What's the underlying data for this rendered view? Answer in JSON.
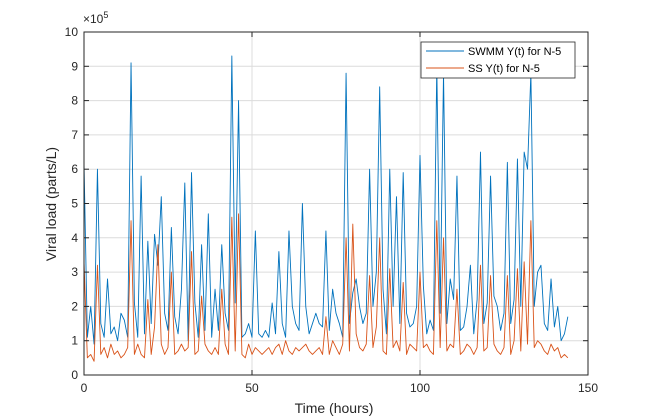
{
  "chart_data": {
    "type": "line",
    "title": "",
    "xlabel": "Time (hours)",
    "ylabel": "Viral load (parts/L)",
    "xlim": [
      0,
      150
    ],
    "ylim": [
      0,
      1000000
    ],
    "x_ticks": [
      0,
      50,
      100,
      150
    ],
    "y_ticks": [
      0,
      1,
      2,
      3,
      4,
      5,
      6,
      7,
      8,
      9,
      10
    ],
    "y_exponent_label": "×10",
    "y_exponent_power": "5",
    "grid": true,
    "legend_position": "top-right",
    "colors": {
      "swmm": "#0072BD",
      "ss": "#D95319"
    },
    "series": [
      {
        "name": "SWMM Y(t) for N-5",
        "color": "#0072BD",
        "x": [
          0,
          1,
          2,
          3,
          4,
          5,
          6,
          7,
          8,
          9,
          10,
          11,
          12,
          13,
          14,
          15,
          16,
          17,
          18,
          19,
          20,
          21,
          22,
          23,
          24,
          25,
          26,
          27,
          28,
          29,
          30,
          31,
          32,
          33,
          34,
          35,
          36,
          37,
          38,
          39,
          40,
          41,
          42,
          43,
          44,
          45,
          46,
          47,
          48,
          49,
          50,
          51,
          52,
          53,
          54,
          55,
          56,
          57,
          58,
          59,
          60,
          61,
          62,
          63,
          64,
          65,
          66,
          67,
          68,
          69,
          70,
          71,
          72,
          73,
          74,
          75,
          76,
          77,
          78,
          79,
          80,
          81,
          82,
          83,
          84,
          85,
          86,
          87,
          88,
          89,
          90,
          91,
          92,
          93,
          94,
          95,
          96,
          97,
          98,
          99,
          100,
          101,
          102,
          103,
          104,
          105,
          106,
          107,
          108,
          109,
          110,
          111,
          112,
          113,
          114,
          115,
          116,
          117,
          118,
          119,
          120,
          121,
          122,
          123,
          124,
          125,
          126,
          127,
          128,
          129,
          130,
          131,
          132,
          133,
          134,
          135,
          136,
          137,
          138,
          139,
          140,
          141,
          142,
          143,
          144
        ],
        "values": [
          620000,
          110000,
          200000,
          90000,
          600000,
          150000,
          110000,
          280000,
          120000,
          140000,
          100000,
          180000,
          160000,
          110000,
          910000,
          210000,
          110000,
          580000,
          120000,
          390000,
          150000,
          410000,
          320000,
          520000,
          180000,
          130000,
          430000,
          170000,
          120000,
          250000,
          560000,
          100000,
          590000,
          210000,
          110000,
          380000,
          130000,
          470000,
          110000,
          250000,
          130000,
          380000,
          180000,
          130000,
          930000,
          210000,
          800000,
          110000,
          120000,
          150000,
          110000,
          420000,
          120000,
          110000,
          130000,
          110000,
          210000,
          120000,
          360000,
          150000,
          110000,
          420000,
          200000,
          150000,
          130000,
          500000,
          200000,
          120000,
          150000,
          180000,
          150000,
          140000,
          420000,
          130000,
          250000,
          180000,
          150000,
          110000,
          880000,
          150000,
          240000,
          280000,
          200000,
          150000,
          180000,
          600000,
          200000,
          300000,
          840000,
          250000,
          120000,
          600000,
          200000,
          520000,
          150000,
          590000,
          180000,
          140000,
          150000,
          200000,
          640000,
          260000,
          120000,
          160000,
          130000,
          900000,
          180000,
          880000,
          150000,
          280000,
          220000,
          580000,
          130000,
          140000,
          200000,
          320000,
          120000,
          220000,
          650000,
          150000,
          210000,
          580000,
          230000,
          200000,
          130000,
          180000,
          620000,
          150000,
          220000,
          630000,
          200000,
          650000,
          600000,
          880000,
          200000,
          300000,
          320000,
          150000,
          130000,
          280000,
          140000,
          200000,
          100000,
          120000,
          170000
        ]
      },
      {
        "name": "SS Y(t) for N-5",
        "color": "#D95319",
        "x": [
          0,
          1,
          2,
          3,
          4,
          5,
          6,
          7,
          8,
          9,
          10,
          11,
          12,
          13,
          14,
          15,
          16,
          17,
          18,
          19,
          20,
          21,
          22,
          23,
          24,
          25,
          26,
          27,
          28,
          29,
          30,
          31,
          32,
          33,
          34,
          35,
          36,
          37,
          38,
          39,
          40,
          41,
          42,
          43,
          44,
          45,
          46,
          47,
          48,
          49,
          50,
          51,
          52,
          53,
          54,
          55,
          56,
          57,
          58,
          59,
          60,
          61,
          62,
          63,
          64,
          65,
          66,
          67,
          68,
          69,
          70,
          71,
          72,
          73,
          74,
          75,
          76,
          77,
          78,
          79,
          80,
          81,
          82,
          83,
          84,
          85,
          86,
          87,
          88,
          89,
          90,
          91,
          92,
          93,
          94,
          95,
          96,
          97,
          98,
          99,
          100,
          101,
          102,
          103,
          104,
          105,
          106,
          107,
          108,
          109,
          110,
          111,
          112,
          113,
          114,
          115,
          116,
          117,
          118,
          119,
          120,
          121,
          122,
          123,
          124,
          125,
          126,
          127,
          128,
          129,
          130,
          131,
          132,
          133,
          134,
          135,
          136,
          137,
          138,
          139,
          140,
          141,
          142,
          143,
          144
        ],
        "values": [
          330000,
          50000,
          60000,
          40000,
          320000,
          60000,
          80000,
          50000,
          90000,
          60000,
          70000,
          50000,
          60000,
          80000,
          450000,
          60000,
          90000,
          60000,
          50000,
          220000,
          60000,
          140000,
          380000,
          90000,
          60000,
          80000,
          300000,
          60000,
          70000,
          90000,
          70000,
          80000,
          360000,
          60000,
          70000,
          230000,
          90000,
          70000,
          60000,
          80000,
          60000,
          250000,
          90000,
          60000,
          460000,
          70000,
          470000,
          60000,
          50000,
          90000,
          60000,
          80000,
          70000,
          60000,
          70000,
          80000,
          60000,
          80000,
          90000,
          60000,
          100000,
          70000,
          60000,
          80000,
          70000,
          80000,
          90000,
          70000,
          60000,
          70000,
          80000,
          60000,
          170000,
          60000,
          100000,
          80000,
          60000,
          90000,
          400000,
          70000,
          440000,
          120000,
          80000,
          70000,
          90000,
          290000,
          80000,
          140000,
          400000,
          70000,
          60000,
          310000,
          80000,
          100000,
          70000,
          270000,
          60000,
          90000,
          80000,
          70000,
          300000,
          80000,
          90000,
          70000,
          60000,
          450000,
          80000,
          400000,
          70000,
          90000,
          80000,
          250000,
          60000,
          70000,
          90000,
          80000,
          60000,
          80000,
          320000,
          70000,
          80000,
          290000,
          90000,
          70000,
          60000,
          80000,
          290000,
          60000,
          100000,
          310000,
          70000,
          330000,
          90000,
          450000,
          80000,
          100000,
          90000,
          70000,
          60000,
          90000,
          70000,
          80000,
          50000,
          60000,
          50000
        ]
      }
    ]
  }
}
